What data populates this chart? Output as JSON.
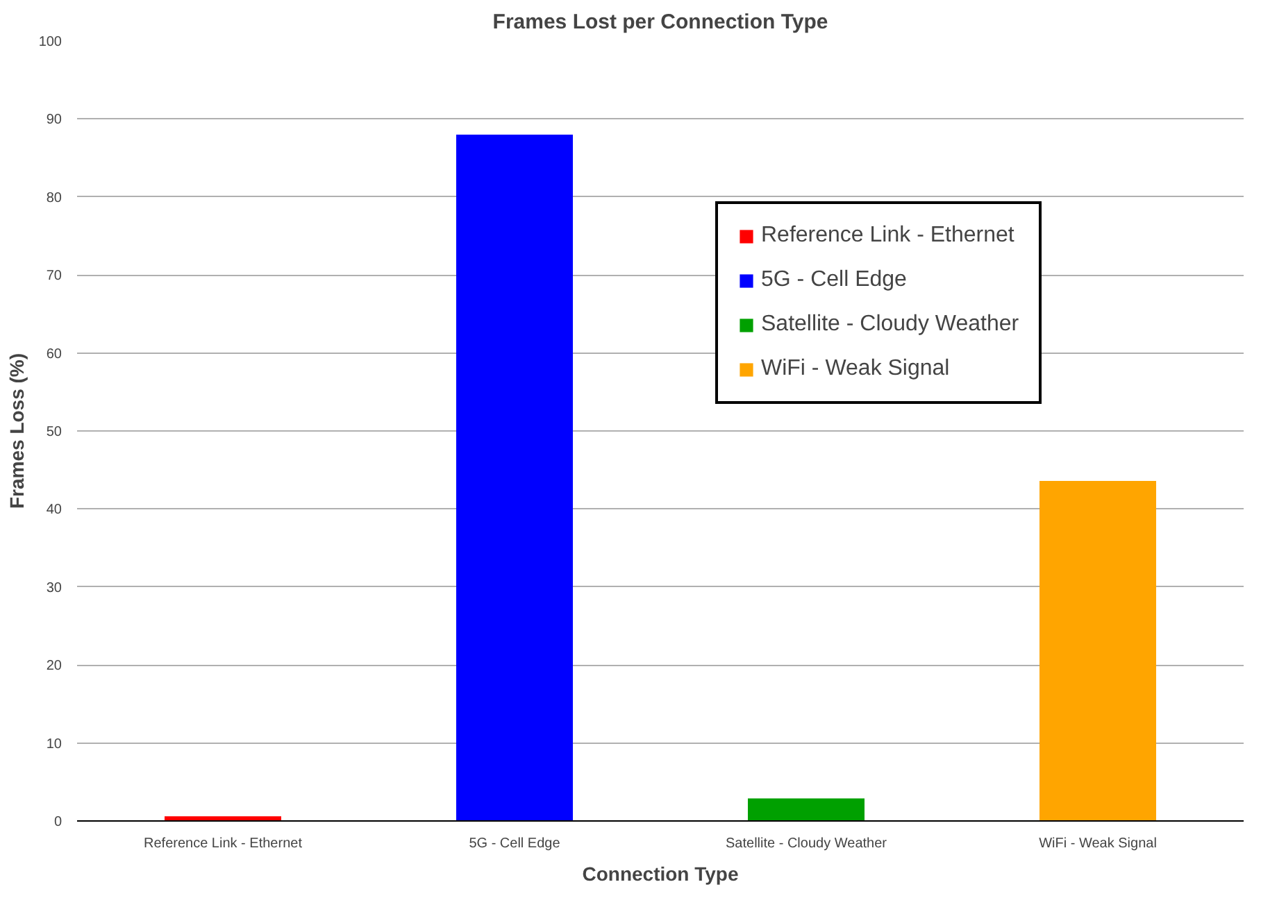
{
  "chart_data": {
    "type": "bar",
    "title": "Frames Lost per Connection Type",
    "xlabel": "Connection Type",
    "ylabel": "Frames Loss (%)",
    "categories": [
      "Reference Link - Ethernet",
      "5G - Cell Edge",
      "Satellite - Cloudy Weather",
      "WiFi - Weak Signal"
    ],
    "series": [
      {
        "name": "Reference Link - Ethernet",
        "color": "#ff0000",
        "values": [
          0.6,
          null,
          null,
          null
        ]
      },
      {
        "name": "5G - Cell Edge",
        "color": "#0000ff",
        "values": [
          null,
          88,
          null,
          null
        ]
      },
      {
        "name": "Satellite - Cloudy Weather",
        "color": "#00a000",
        "values": [
          null,
          null,
          2.9,
          null
        ]
      },
      {
        "name": "WiFi - Weak Signal",
        "color": "#ffa500",
        "values": [
          null,
          null,
          null,
          43.6
        ]
      }
    ],
    "ylim": [
      0,
      100
    ],
    "yticks": [
      0,
      10,
      20,
      30,
      40,
      50,
      60,
      70,
      80,
      90,
      100
    ],
    "grid": "y",
    "legend": "top right"
  }
}
